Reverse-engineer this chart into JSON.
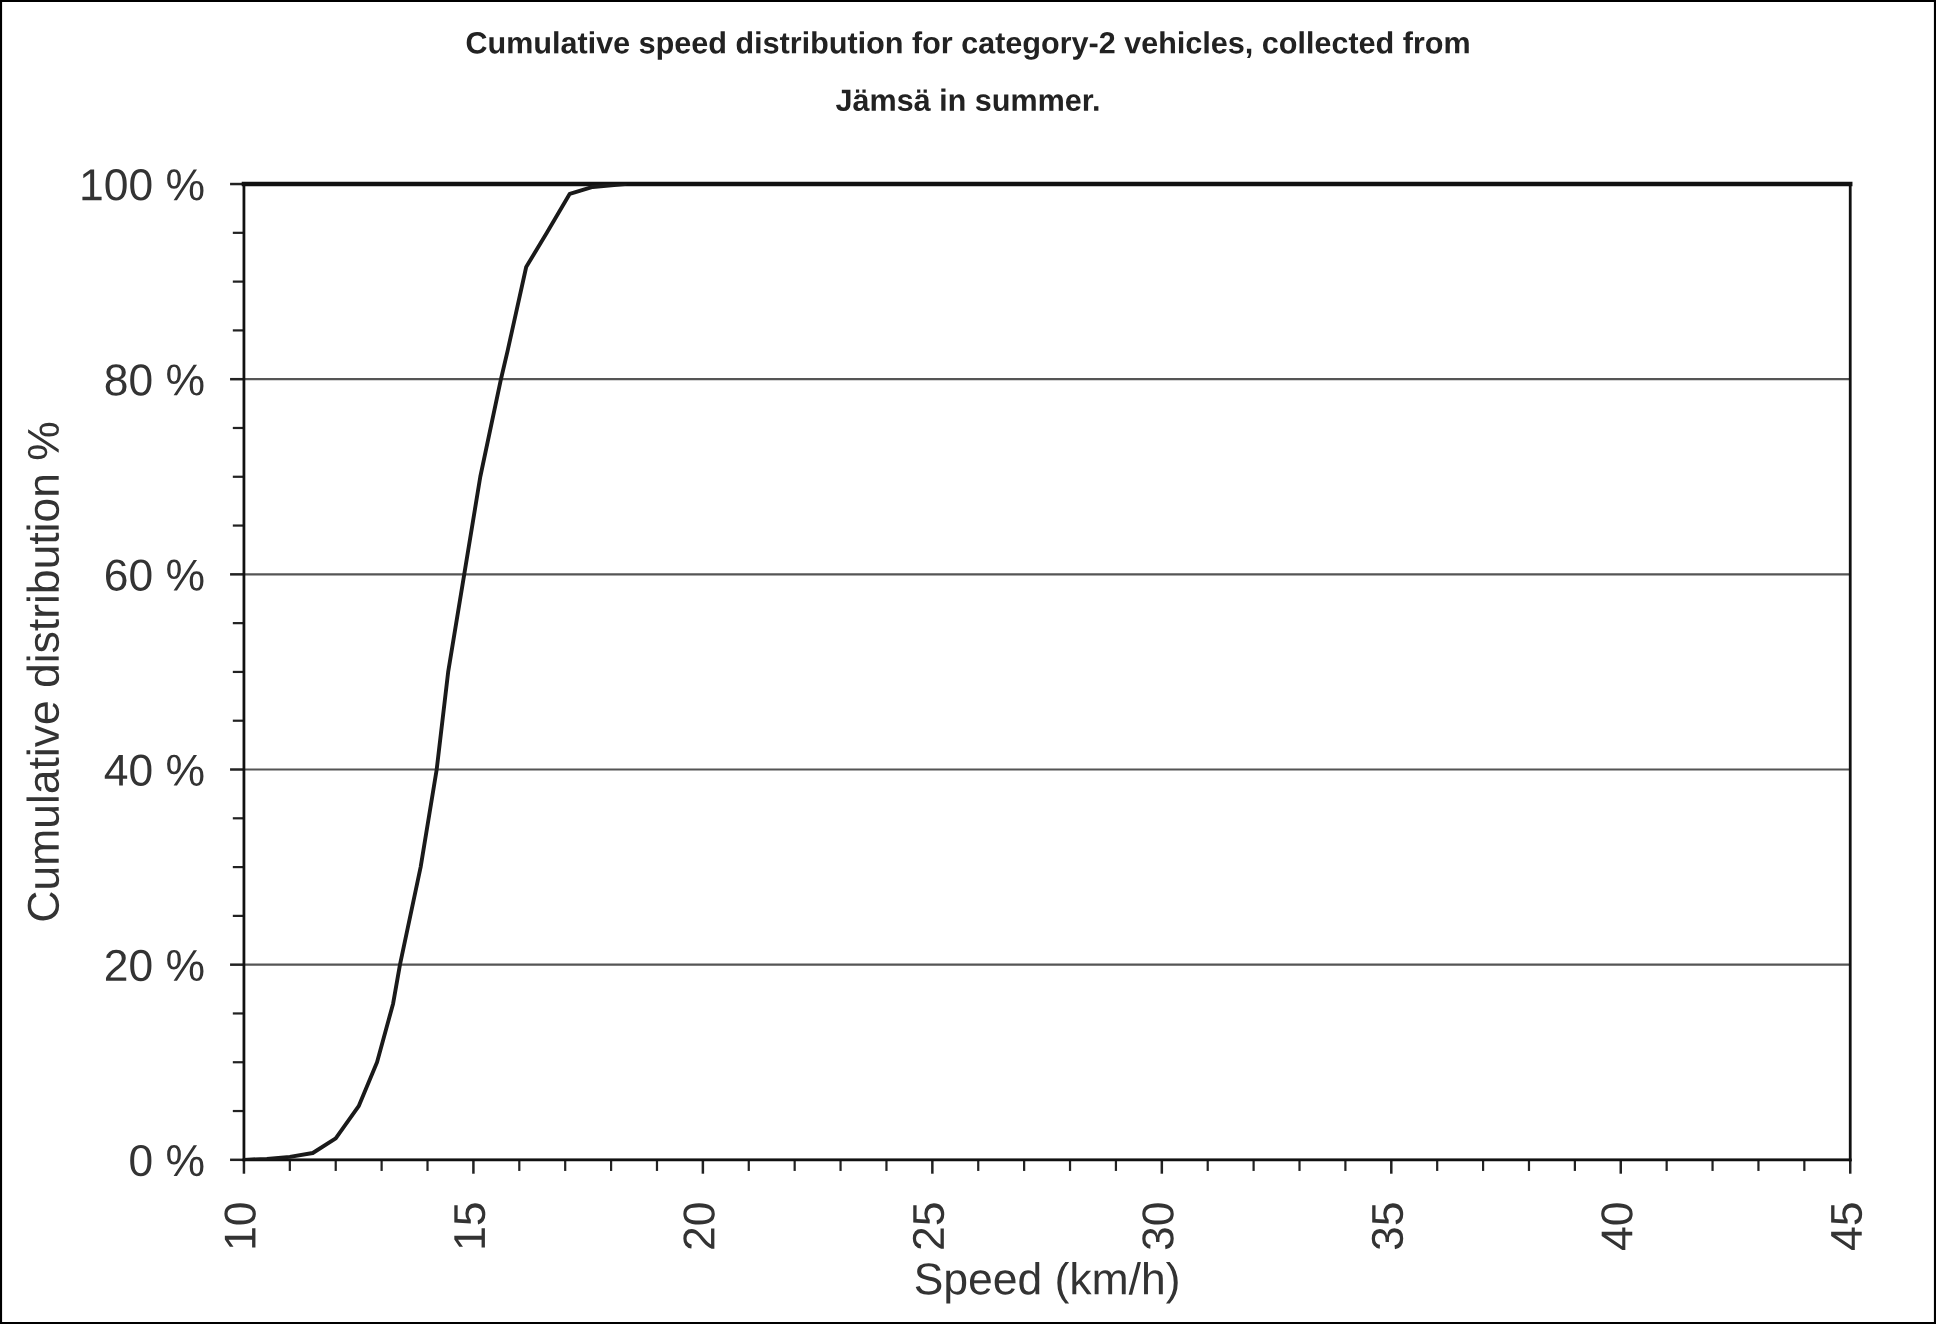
{
  "chart_data": {
    "type": "line",
    "title": "Cumulative speed distribution for category-2 vehicles, collected from Jämsä in summer.",
    "xlabel": "Speed (km/h)",
    "ylabel": "Cumulative distribution %",
    "x": [
      10,
      10.5,
      11,
      11.5,
      12,
      12.5,
      12.9,
      13.25,
      13.4,
      13.85,
      14.2,
      14.45,
      14.8,
      15.15,
      15.6,
      15.75,
      16.15,
      16.6,
      17.1,
      17.6,
      18.3
    ],
    "series": [
      {
        "color": "#1a1a1a",
        "values": [
          0,
          0.1,
          0.3,
          0.7,
          2.2,
          5.5,
          10,
          16,
          20,
          30,
          40,
          50,
          60,
          70,
          80,
          83,
          91.5,
          95,
          99,
          99.7,
          100
        ]
      }
    ],
    "xlim": [
      10,
      45
    ],
    "xticks": [
      10,
      {
        "value": 11,
        "label": null
      },
      {
        "value": 12,
        "label": null
      },
      {
        "value": 13,
        "label": null
      },
      {
        "value": 14,
        "label": null
      },
      15,
      {
        "value": 16,
        "label": null
      },
      {
        "value": 17,
        "label": null
      },
      {
        "value": 18,
        "label": null
      },
      {
        "value": 19,
        "label": null
      },
      20,
      {
        "value": 21,
        "label": null
      },
      {
        "value": 22,
        "label": null
      },
      {
        "value": 23,
        "label": null
      },
      {
        "value": 24,
        "label": null
      },
      25,
      {
        "value": 26,
        "label": null
      },
      {
        "value": 27,
        "label": null
      },
      {
        "value": 28,
        "label": null
      },
      {
        "value": 29,
        "label": null
      },
      30,
      {
        "value": 31,
        "label": null
      },
      {
        "value": 32,
        "label": null
      },
      {
        "value": 33,
        "label": null
      },
      {
        "value": 34,
        "label": null
      },
      35,
      {
        "value": 36,
        "label": null
      },
      {
        "value": 37,
        "label": null
      },
      {
        "value": 38,
        "label": null
      },
      {
        "value": 39,
        "label": null
      },
      40,
      {
        "value": 41,
        "label": null
      },
      {
        "value": 42,
        "label": null
      },
      {
        "value": 43,
        "label": null
      },
      {
        "value": 44,
        "label": null
      },
      45
    ],
    "ylim": [
      0,
      100
    ],
    "yticks": [
      {
        "value": 0,
        "label": "0 %"
      },
      {
        "value": 5,
        "label": null
      },
      {
        "value": 10,
        "label": null
      },
      {
        "value": 15,
        "label": null
      },
      {
        "value": 20,
        "label": "20 %"
      },
      {
        "value": 25,
        "label": null
      },
      {
        "value": 30,
        "label": null
      },
      {
        "value": 35,
        "label": null
      },
      {
        "value": 40,
        "label": "40 %"
      },
      {
        "value": 45,
        "label": null
      },
      {
        "value": 50,
        "label": null
      },
      {
        "value": 55,
        "label": null
      },
      {
        "value": 60,
        "label": "60 %"
      },
      {
        "value": 65,
        "label": null
      },
      {
        "value": 70,
        "label": null
      },
      {
        "value": 75,
        "label": null
      },
      {
        "value": 80,
        "label": "80 %"
      },
      {
        "value": 85,
        "label": null
      },
      {
        "value": 90,
        "label": null
      },
      {
        "value": 95,
        "label": null
      },
      {
        "value": 100,
        "label": "100 %"
      }
    ],
    "grid": "y",
    "marker": "none",
    "line_style": "solid"
  }
}
